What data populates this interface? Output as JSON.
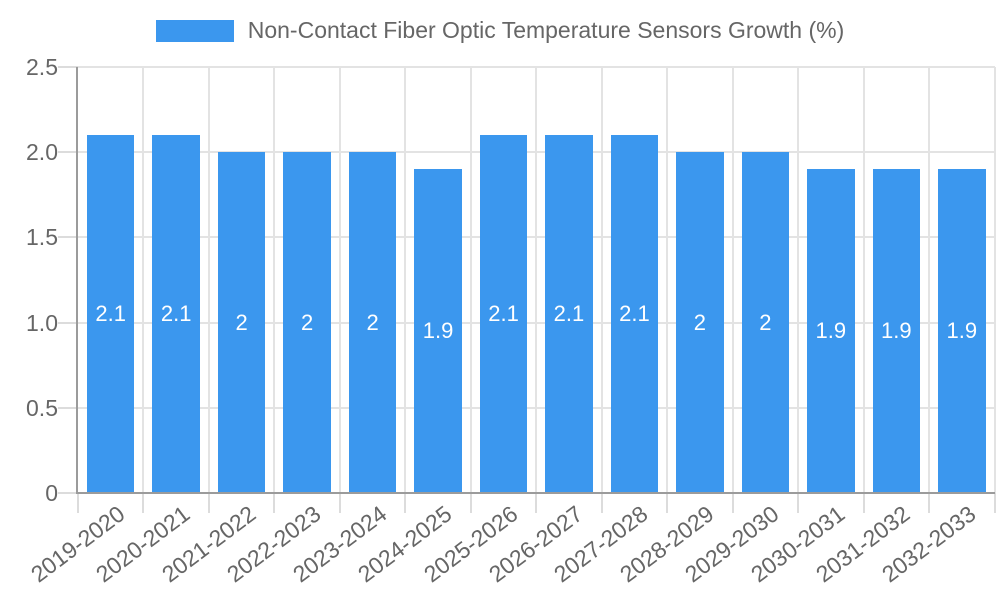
{
  "legend": {
    "label": "Non-Contact Fiber Optic Temperature Sensors Growth (%)"
  },
  "colors": {
    "bar": "#3b97ee",
    "axis": "#9b9b9b",
    "grid": "#e3e3e3",
    "tick": "#dcdcdc",
    "tick_text": "#666666",
    "bar_label_text": "#ffffff"
  },
  "chart_data": {
    "type": "bar",
    "title": "Non-Contact Fiber Optic Temperature Sensors Growth (%)",
    "xlabel": "",
    "ylabel": "",
    "categories": [
      "2019-2020",
      "2020-2021",
      "2021-2022",
      "2022-2023",
      "2023-2024",
      "2024-2025",
      "2025-2026",
      "2026-2027",
      "2027-2028",
      "2028-2029",
      "2029-2030",
      "2030-2031",
      "2031-2032",
      "2032-2033"
    ],
    "values": [
      2.1,
      2.1,
      2,
      2,
      2,
      1.9,
      2.1,
      2.1,
      2.1,
      2,
      2,
      1.9,
      1.9,
      1.9
    ],
    "bar_labels": [
      "2.1",
      "2.1",
      "2",
      "2",
      "2",
      "1.9",
      "2.1",
      "2.1",
      "2.1",
      "2",
      "2",
      "1.9",
      "1.9",
      "1.9"
    ],
    "ylim": [
      0,
      2.5
    ],
    "yticks": [
      0,
      0.5,
      1,
      1.5,
      2,
      2.5
    ],
    "ytick_labels": [
      "0",
      "0.5",
      "1.0",
      "1.5",
      "2.0",
      "2.5"
    ],
    "grid": true,
    "legend_position": "top"
  }
}
